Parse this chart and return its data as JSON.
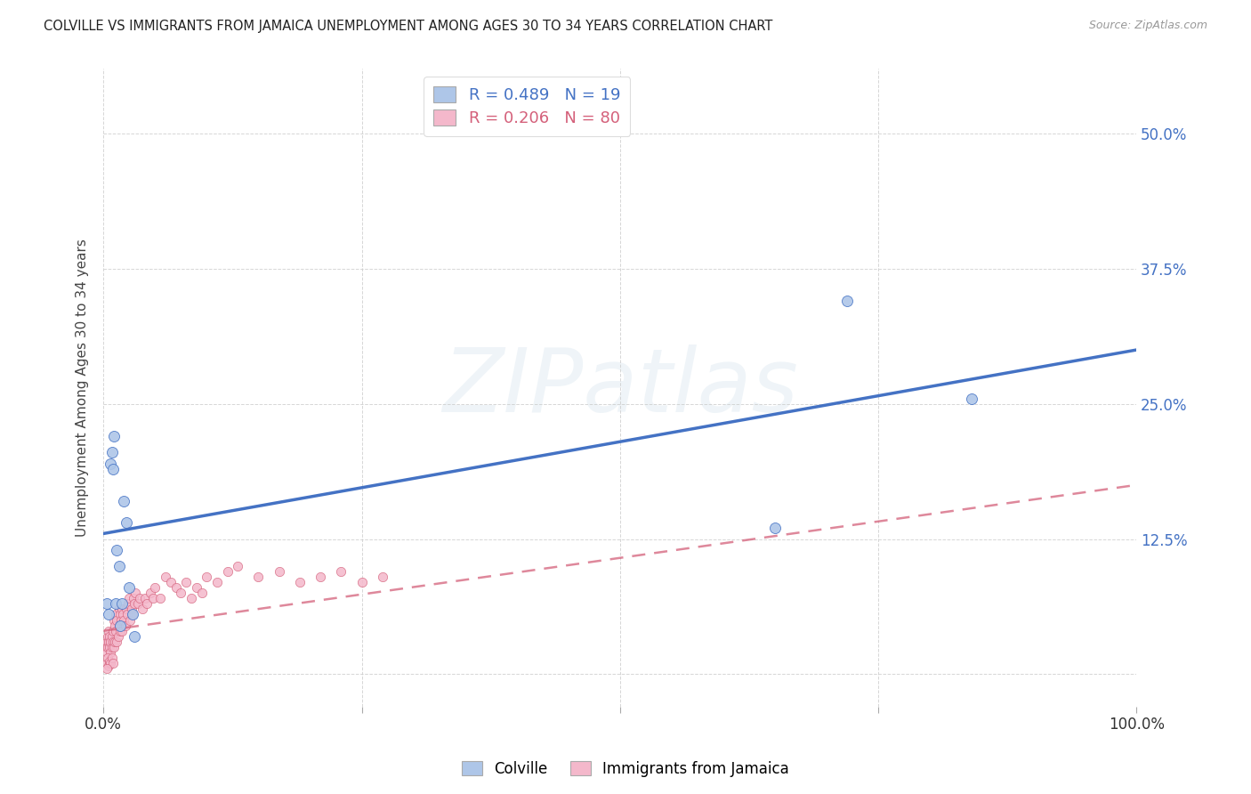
{
  "title": "COLVILLE VS IMMIGRANTS FROM JAMAICA UNEMPLOYMENT AMONG AGES 30 TO 34 YEARS CORRELATION CHART",
  "source": "Source: ZipAtlas.com",
  "ylabel": "Unemployment Among Ages 30 to 34 years",
  "xlim": [
    0.0,
    1.0
  ],
  "ylim": [
    -0.03,
    0.56
  ],
  "xticks": [
    0.0,
    0.25,
    0.5,
    0.75,
    1.0
  ],
  "xticklabels": [
    "0.0%",
    "",
    "",
    "",
    "100.0%"
  ],
  "yticks": [
    0.0,
    0.125,
    0.25,
    0.375,
    0.5
  ],
  "yticklabels_right": [
    "",
    "12.5%",
    "25.0%",
    "37.5%",
    "50.0%"
  ],
  "colville_R": 0.489,
  "colville_N": 19,
  "jamaica_R": 0.206,
  "jamaica_N": 80,
  "colville_color": "#aec6e8",
  "colville_line_color": "#4472c4",
  "jamaica_color": "#f4b8cb",
  "jamaica_line_color": "#d4607a",
  "watermark_text": "ZIPatlas",
  "legend_label_colville": "Colville",
  "legend_label_jamaica": "Immigrants from Jamaica",
  "colville_line_x": [
    0.0,
    1.0
  ],
  "colville_line_y": [
    0.13,
    0.3
  ],
  "jamaica_line_x": [
    0.0,
    1.0
  ],
  "jamaica_line_y": [
    0.04,
    0.175
  ],
  "colville_x": [
    0.003,
    0.005,
    0.007,
    0.008,
    0.009,
    0.01,
    0.012,
    0.013,
    0.015,
    0.016,
    0.018,
    0.02,
    0.022,
    0.025,
    0.028,
    0.03,
    0.65,
    0.72,
    0.84
  ],
  "colville_y": [
    0.065,
    0.055,
    0.195,
    0.205,
    0.19,
    0.22,
    0.065,
    0.115,
    0.1,
    0.045,
    0.065,
    0.16,
    0.14,
    0.08,
    0.055,
    0.035,
    0.135,
    0.345,
    0.255
  ],
  "jamaica_x": [
    0.002,
    0.003,
    0.003,
    0.004,
    0.004,
    0.005,
    0.005,
    0.006,
    0.006,
    0.007,
    0.007,
    0.008,
    0.008,
    0.009,
    0.009,
    0.01,
    0.01,
    0.011,
    0.011,
    0.012,
    0.012,
    0.013,
    0.013,
    0.014,
    0.015,
    0.015,
    0.016,
    0.016,
    0.017,
    0.018,
    0.018,
    0.019,
    0.02,
    0.021,
    0.022,
    0.023,
    0.024,
    0.025,
    0.026,
    0.027,
    0.028,
    0.029,
    0.03,
    0.031,
    0.033,
    0.035,
    0.038,
    0.04,
    0.042,
    0.045,
    0.048,
    0.05,
    0.055,
    0.06,
    0.065,
    0.07,
    0.075,
    0.08,
    0.085,
    0.09,
    0.095,
    0.1,
    0.11,
    0.12,
    0.13,
    0.15,
    0.17,
    0.19,
    0.21,
    0.23,
    0.25,
    0.27,
    0.003,
    0.004,
    0.005,
    0.006,
    0.007,
    0.008,
    0.009,
    0.003
  ],
  "jamaica_y": [
    0.025,
    0.02,
    0.03,
    0.025,
    0.035,
    0.03,
    0.04,
    0.025,
    0.035,
    0.02,
    0.03,
    0.025,
    0.035,
    0.03,
    0.04,
    0.025,
    0.05,
    0.03,
    0.045,
    0.04,
    0.055,
    0.03,
    0.05,
    0.035,
    0.045,
    0.06,
    0.04,
    0.055,
    0.05,
    0.04,
    0.06,
    0.055,
    0.05,
    0.045,
    0.06,
    0.055,
    0.065,
    0.07,
    0.05,
    0.06,
    0.055,
    0.07,
    0.065,
    0.075,
    0.065,
    0.07,
    0.06,
    0.07,
    0.065,
    0.075,
    0.07,
    0.08,
    0.07,
    0.09,
    0.085,
    0.08,
    0.075,
    0.085,
    0.07,
    0.08,
    0.075,
    0.09,
    0.085,
    0.095,
    0.1,
    0.09,
    0.095,
    0.085,
    0.09,
    0.095,
    0.085,
    0.09,
    0.01,
    0.015,
    0.008,
    0.012,
    0.01,
    0.015,
    0.01,
    0.005
  ]
}
